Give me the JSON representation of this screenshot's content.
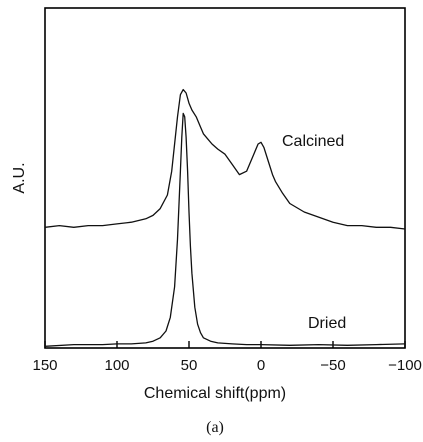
{
  "chart_data": {
    "type": "line",
    "xlabel": "Chemical shift(ppm)",
    "ylabel": "A.U.",
    "caption": "(a)",
    "xlim": [
      150,
      -100
    ],
    "x_ticks": [
      150,
      100,
      50,
      0,
      -50,
      -100
    ],
    "x_tick_labels": [
      "150",
      "100",
      "50",
      "0",
      "−50",
      "−100"
    ],
    "y_ticks": "none",
    "grid": false,
    "series": [
      {
        "name": "Calcined",
        "x": [
          150,
          140,
          130,
          120,
          110,
          100,
          90,
          80,
          75,
          70,
          65,
          62,
          60,
          58,
          56,
          54,
          52,
          50,
          48,
          45,
          42,
          40,
          37,
          34,
          30,
          25,
          20,
          15,
          10,
          5,
          2,
          0,
          -2,
          -5,
          -8,
          -10,
          -15,
          -20,
          -30,
          -40,
          -50,
          -60,
          -70,
          -80,
          -90,
          -100
        ],
        "y": [
          0.355,
          0.36,
          0.355,
          0.36,
          0.36,
          0.365,
          0.37,
          0.38,
          0.39,
          0.41,
          0.45,
          0.52,
          0.6,
          0.68,
          0.745,
          0.76,
          0.75,
          0.72,
          0.7,
          0.68,
          0.65,
          0.63,
          0.615,
          0.6,
          0.585,
          0.57,
          0.54,
          0.51,
          0.52,
          0.57,
          0.6,
          0.605,
          0.59,
          0.55,
          0.51,
          0.49,
          0.455,
          0.425,
          0.4,
          0.385,
          0.37,
          0.36,
          0.36,
          0.355,
          0.355,
          0.35
        ]
      },
      {
        "name": "Dried",
        "x": [
          150,
          130,
          110,
          100,
          90,
          80,
          75,
          70,
          66,
          63,
          60,
          58,
          56,
          55,
          54,
          53,
          52,
          51,
          50,
          49,
          48,
          46,
          44,
          42,
          40,
          35,
          30,
          20,
          10,
          0,
          -20,
          -40,
          -60,
          -80,
          -100
        ],
        "y": [
          0.005,
          0.01,
          0.01,
          0.012,
          0.012,
          0.015,
          0.02,
          0.03,
          0.05,
          0.09,
          0.18,
          0.32,
          0.52,
          0.62,
          0.69,
          0.68,
          0.62,
          0.52,
          0.4,
          0.3,
          0.22,
          0.12,
          0.07,
          0.045,
          0.03,
          0.02,
          0.015,
          0.012,
          0.01,
          0.01,
          0.008,
          0.01,
          0.008,
          0.01,
          0.012
        ]
      }
    ],
    "annotations": [
      {
        "text": "Calcined",
        "series": "Calcined"
      },
      {
        "text": "Dried",
        "series": "Dried"
      }
    ]
  }
}
